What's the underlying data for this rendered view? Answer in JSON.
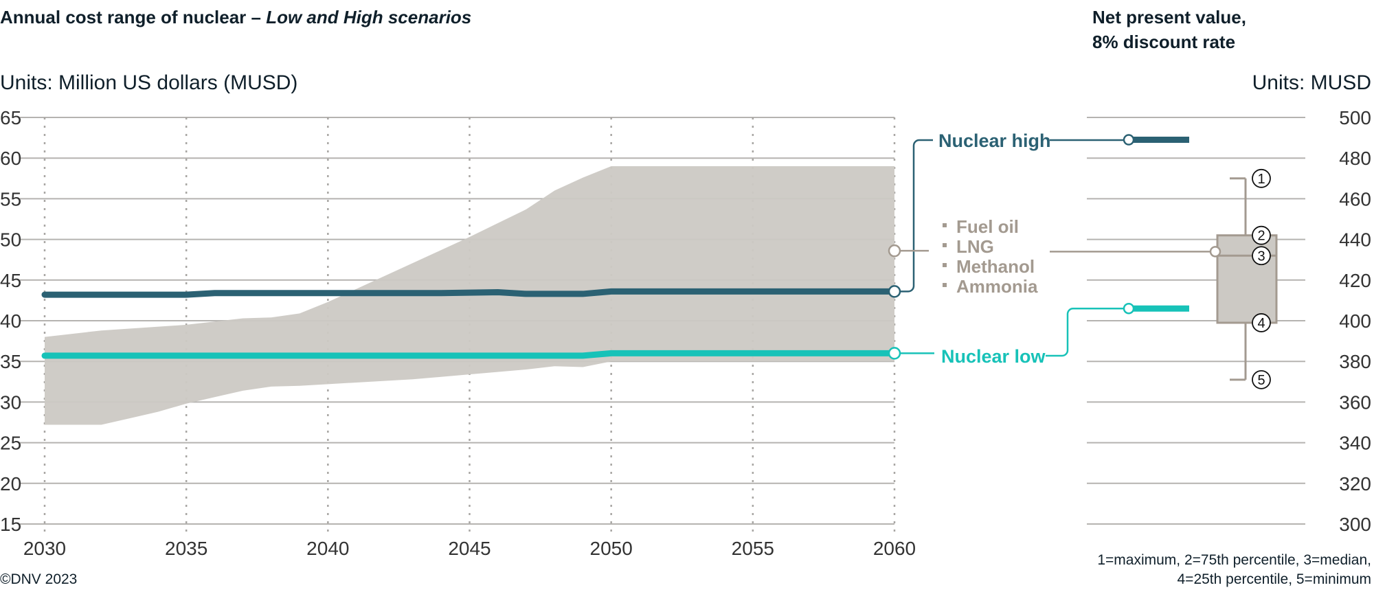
{
  "chart_data": [
    {
      "type": "area",
      "title_plain": "Annual cost range of nuclear – ",
      "title_italic": "Low and High scenarios",
      "units_prefix": "Units:",
      "units": "Million US dollars (MUSD)",
      "xlim": [
        2030,
        2060
      ],
      "ylim": [
        15,
        65
      ],
      "xticks": [
        2030,
        2035,
        2040,
        2045,
        2050,
        2055,
        2060
      ],
      "yticks": [
        15,
        20,
        25,
        30,
        35,
        40,
        45,
        50,
        55,
        60,
        65
      ],
      "grid": true,
      "band": {
        "legend": [
          "Fuel oil",
          "LNG",
          "Methanol",
          "Ammonia"
        ],
        "color": "#ccc9c4",
        "upper": [
          [
            2030,
            38
          ],
          [
            2032,
            38.8
          ],
          [
            2035,
            39.5
          ],
          [
            2037,
            40.3
          ],
          [
            2038,
            40.4
          ],
          [
            2039,
            40.9
          ],
          [
            2040,
            42.3
          ],
          [
            2045,
            50.3
          ],
          [
            2046,
            52
          ],
          [
            2047,
            53.7
          ],
          [
            2048,
            56
          ],
          [
            2049,
            57.6
          ],
          [
            2050,
            59
          ],
          [
            2060,
            59
          ]
        ],
        "lower": [
          [
            2030,
            27.2
          ],
          [
            2032,
            27.2
          ],
          [
            2033,
            28
          ],
          [
            2034,
            28.8
          ],
          [
            2035,
            29.8
          ],
          [
            2036,
            30.6
          ],
          [
            2037,
            31.4
          ],
          [
            2038,
            31.9
          ],
          [
            2039,
            32
          ],
          [
            2040,
            32.2
          ],
          [
            2043,
            32.8
          ],
          [
            2045,
            33.4
          ],
          [
            2047,
            34
          ],
          [
            2048,
            34.4
          ],
          [
            2049,
            34.3
          ],
          [
            2050,
            35
          ],
          [
            2060,
            35
          ]
        ]
      },
      "series": [
        {
          "name": "Nuclear high",
          "color": "#2b6173",
          "points": [
            [
              2030,
              43.2
            ],
            [
              2035,
              43.2
            ],
            [
              2036,
              43.4
            ],
            [
              2044,
              43.4
            ],
            [
              2046,
              43.5
            ],
            [
              2047,
              43.3
            ],
            [
              2049,
              43.3
            ],
            [
              2050,
              43.6
            ],
            [
              2060,
              43.6
            ]
          ]
        },
        {
          "name": "Nuclear low",
          "color": "#17c2b8",
          "points": [
            [
              2030,
              35.7
            ],
            [
              2049,
              35.7
            ],
            [
              2050,
              36.0
            ],
            [
              2060,
              36.0
            ]
          ]
        }
      ]
    },
    {
      "type": "box",
      "title": "Net present value, 8% discount rate",
      "title_line1": "Net present value,",
      "title_line2": "8% discount rate",
      "units_prefix": "Units:",
      "units": "MUSD",
      "ylim": [
        300,
        500
      ],
      "yticks": [
        300,
        320,
        340,
        360,
        380,
        400,
        420,
        440,
        460,
        480,
        500
      ],
      "box": {
        "maximum": 470,
        "p75": 442,
        "median": 432,
        "p25": 399,
        "minimum": 371,
        "color": "#a39a90"
      },
      "box_labels": [
        "1",
        "2",
        "3",
        "4",
        "5"
      ],
      "fuel_marker": 434,
      "nuclear_high": 489,
      "nuclear_low": 406,
      "legend_line1": "1=maximum, 2=75th percentile, 3=median,",
      "legend_line2": "4=25th percentile, 5=minimum"
    }
  ],
  "footer": {
    "copyright": "©DNV 2023"
  }
}
